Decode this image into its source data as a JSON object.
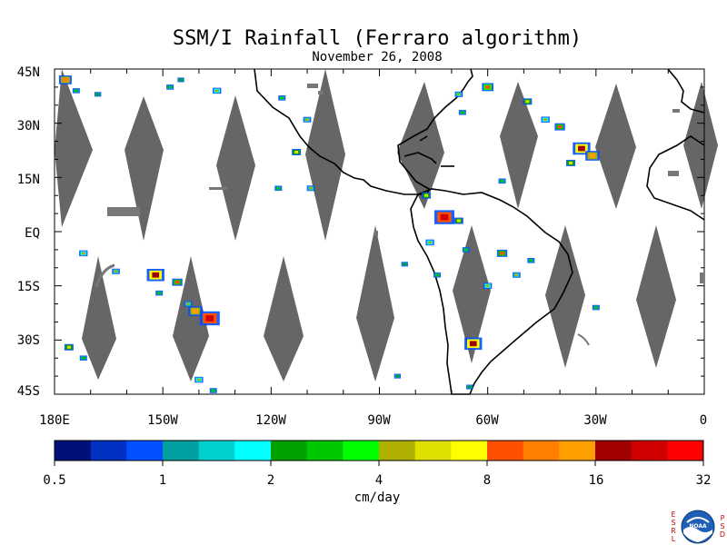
{
  "chart_data": {
    "type": "heatmap",
    "title": "SSM/I Rainfall (Ferraro algorithm)",
    "subtitle": "November 26, 2008",
    "x_ticks": [
      "180E",
      "150W",
      "120W",
      "90W",
      "60W",
      "30W",
      "0"
    ],
    "x_tick_values": [
      -180,
      -150,
      -120,
      -90,
      -60,
      -30,
      0
    ],
    "y_ticks": [
      "45N",
      "30N",
      "15N",
      "EQ",
      "15S",
      "30S",
      "45S"
    ],
    "y_tick_values": [
      45,
      30,
      15,
      0,
      -15,
      -30,
      -45
    ],
    "xlim": [
      -180,
      0
    ],
    "ylim": [
      -45,
      45
    ],
    "colorbar": {
      "label": "cm/day",
      "tick_labels": [
        "0.5",
        "1",
        "2",
        "4",
        "8",
        "16",
        "32"
      ],
      "tick_values": [
        0.5,
        1,
        2,
        4,
        8,
        16,
        32
      ],
      "colors": [
        "#00107a",
        "#0030c0",
        "#0050ff",
        "#00a0a0",
        "#00d0d0",
        "#00ffff",
        "#00a000",
        "#00c800",
        "#00ff00",
        "#b0b000",
        "#e0e000",
        "#ffff00",
        "#ff5000",
        "#ff8000",
        "#ffa000",
        "#a00000",
        "#d00000",
        "#ff0000"
      ]
    },
    "no_data_swath_color": "#666666",
    "rain_cells": [
      {
        "lon": -177,
        "lat": 42,
        "value": 12
      },
      {
        "lon": -174,
        "lat": 39,
        "value": 3
      },
      {
        "lon": -168,
        "lat": 38,
        "value": 2
      },
      {
        "lon": -148,
        "lat": 40,
        "value": 3
      },
      {
        "lon": -145,
        "lat": 42,
        "value": 2
      },
      {
        "lon": -135,
        "lat": 39,
        "value": 5
      },
      {
        "lon": -117,
        "lat": 37,
        "value": 3
      },
      {
        "lon": -110,
        "lat": 31,
        "value": 4
      },
      {
        "lon": -113,
        "lat": 22,
        "value": 6
      },
      {
        "lon": -109,
        "lat": 12,
        "value": 4
      },
      {
        "lon": -118,
        "lat": 12,
        "value": 3
      },
      {
        "lon": -68,
        "lat": 38,
        "value": 4
      },
      {
        "lon": -67,
        "lat": 33,
        "value": 3
      },
      {
        "lon": -60,
        "lat": 40,
        "value": 10
      },
      {
        "lon": -49,
        "lat": 36,
        "value": 6
      },
      {
        "lon": -44,
        "lat": 31,
        "value": 5
      },
      {
        "lon": -40,
        "lat": 29,
        "value": 8
      },
      {
        "lon": -34,
        "lat": 23,
        "value": 20
      },
      {
        "lon": -31,
        "lat": 21,
        "value": 14
      },
      {
        "lon": -37,
        "lat": 19,
        "value": 6
      },
      {
        "lon": -56,
        "lat": 14,
        "value": 3
      },
      {
        "lon": -77,
        "lat": 10,
        "value": 6
      },
      {
        "lon": -72,
        "lat": 4,
        "value": 24
      },
      {
        "lon": -68,
        "lat": 3,
        "value": 6
      },
      {
        "lon": -76,
        "lat": -3,
        "value": 5
      },
      {
        "lon": -66,
        "lat": -5,
        "value": 3
      },
      {
        "lon": -56,
        "lat": -6,
        "value": 8
      },
      {
        "lon": -52,
        "lat": -12,
        "value": 4
      },
      {
        "lon": -60,
        "lat": -15,
        "value": 5
      },
      {
        "lon": -48,
        "lat": -8,
        "value": 3
      },
      {
        "lon": -64,
        "lat": -31,
        "value": 20
      },
      {
        "lon": -74,
        "lat": -12,
        "value": 3
      },
      {
        "lon": -83,
        "lat": -9,
        "value": 2
      },
      {
        "lon": -172,
        "lat": -6,
        "value": 5
      },
      {
        "lon": -163,
        "lat": -11,
        "value": 4
      },
      {
        "lon": -152,
        "lat": -12,
        "value": 20
      },
      {
        "lon": -146,
        "lat": -14,
        "value": 8
      },
      {
        "lon": -151,
        "lat": -17,
        "value": 3
      },
      {
        "lon": -141,
        "lat": -22,
        "value": 14
      },
      {
        "lon": -137,
        "lat": -24,
        "value": 24
      },
      {
        "lon": -143,
        "lat": -20,
        "value": 4
      },
      {
        "lon": -176,
        "lat": -32,
        "value": 6
      },
      {
        "lon": -172,
        "lat": -35,
        "value": 3
      },
      {
        "lon": -140,
        "lat": -41,
        "value": 5
      },
      {
        "lon": -136,
        "lat": -44,
        "value": 3
      },
      {
        "lon": -65,
        "lat": -43,
        "value": 2
      },
      {
        "lon": -30,
        "lat": -21,
        "value": 3
      },
      {
        "lon": -85,
        "lat": -40,
        "value": 2
      }
    ]
  },
  "logo": {
    "left_letters": [
      "E",
      "S",
      "R",
      "L"
    ],
    "right_letters": [
      "P",
      "S",
      "D"
    ],
    "badge_text": "NOAA"
  }
}
